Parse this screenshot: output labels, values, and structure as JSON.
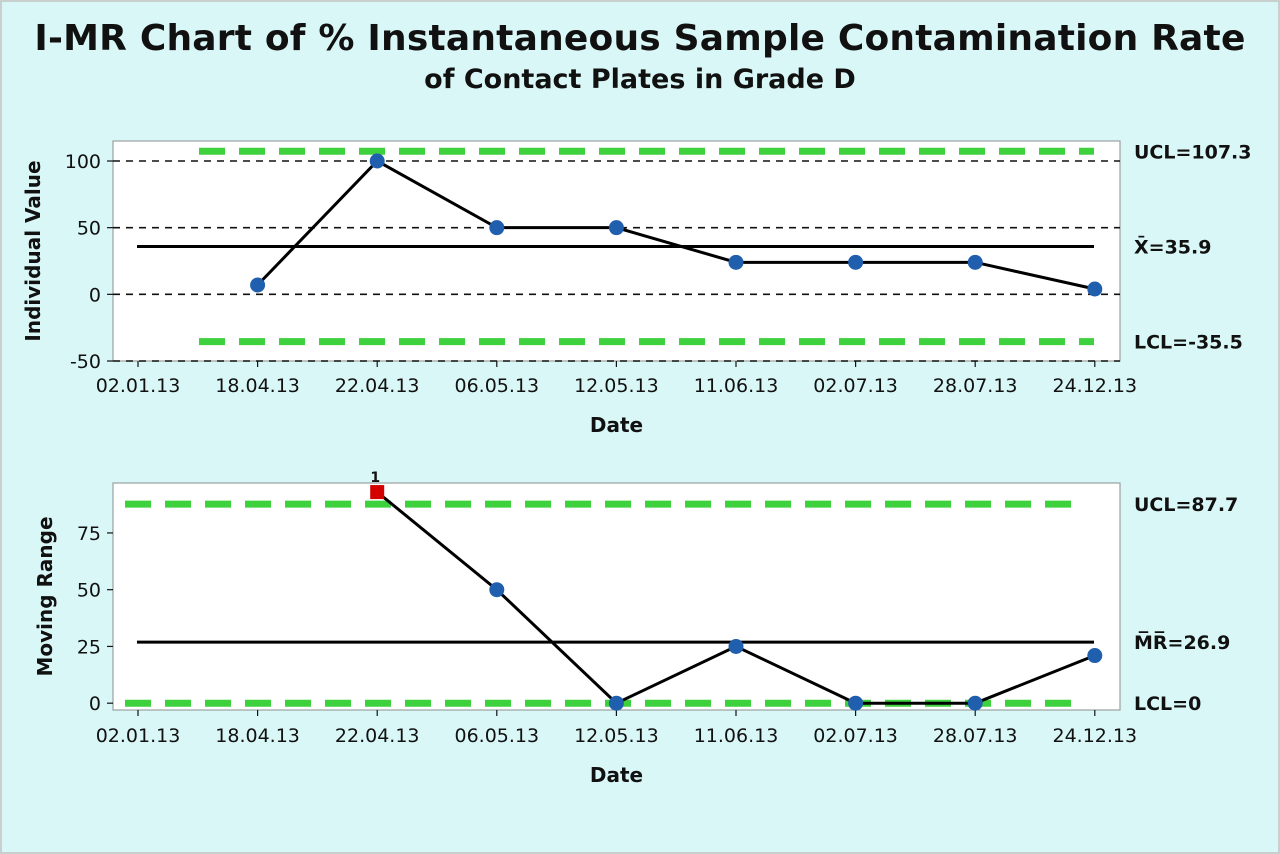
{
  "title": "I-MR Chart of % Instantaneous Sample Contamination Rate",
  "subtitle": "of  Contact Plates in Grade D",
  "chart_data": [
    {
      "type": "line",
      "name": "individual",
      "xlabel": "Date",
      "ylabel": "Individual Value",
      "categories": [
        "02.01.13",
        "18.04.13",
        "22.04.13",
        "06.05.13",
        "12.05.13",
        "11.06.13",
        "02.07.13",
        "28.07.13",
        "24.12.13"
      ],
      "values": [
        null,
        7,
        100,
        50,
        50,
        24,
        24,
        24,
        4
      ],
      "ylim": [
        -50,
        115
      ],
      "yticks": [
        100,
        50,
        0,
        -50
      ],
      "center": 35.9,
      "ucl": 107.3,
      "lcl": -35.5,
      "center_label": "X̄=35.9",
      "ucl_label": "UCL=107.3",
      "lcl_label": "LCL=-35.5",
      "reference_lines": [
        100,
        50,
        0,
        -50
      ],
      "marker_color": "#1f5fae",
      "line_color": "#000000",
      "limit_color": "#3dd13d"
    },
    {
      "type": "line",
      "name": "moving-range",
      "xlabel": "Date",
      "ylabel": "Moving Range",
      "categories": [
        "02.01.13",
        "18.04.13",
        "22.04.13",
        "06.05.13",
        "12.05.13",
        "11.06.13",
        "02.07.13",
        "28.07.13",
        "24.12.13"
      ],
      "values": [
        null,
        null,
        93,
        50,
        0,
        25,
        0,
        0,
        21
      ],
      "ylim": [
        -3,
        97
      ],
      "yticks": [
        75,
        50,
        25,
        0
      ],
      "center": 26.9,
      "ucl": 87.7,
      "lcl": 0,
      "center_label": "M̅R̅=26.9",
      "ucl_label": "UCL=87.7",
      "lcl_label": "LCL=0",
      "flagged": [
        {
          "index": 2,
          "label": "1",
          "color": "#d40000"
        }
      ],
      "marker_color": "#1f5fae",
      "line_color": "#000000",
      "limit_color": "#3dd13d"
    }
  ]
}
